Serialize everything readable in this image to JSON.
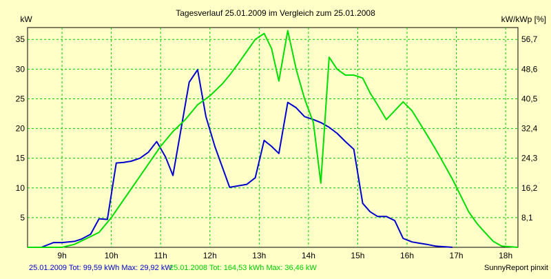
{
  "chart_data": {
    "type": "line",
    "title": "Tagesverlauf 25.01.2009 im Vergleich zum 25.01.2008",
    "ylabel_left": "kW",
    "ylabel_right": "kW/kWp [%]",
    "ylim": [
      0,
      37
    ],
    "yticks_left": [
      5,
      10,
      15,
      20,
      25,
      30,
      35
    ],
    "yticks_right": [
      "8,1",
      "16,2",
      "24,3",
      "32,4",
      "40,5",
      "48,6",
      "56,7"
    ],
    "xlim": [
      8.3,
      18.25
    ],
    "xticks": [
      {
        "value": 9,
        "label": "9h"
      },
      {
        "value": 10,
        "label": "10h"
      },
      {
        "value": 11,
        "label": "11h"
      },
      {
        "value": 12,
        "label": "12h"
      },
      {
        "value": 13,
        "label": "13h"
      },
      {
        "value": 14,
        "label": "14h"
      },
      {
        "value": 15,
        "label": "15h"
      },
      {
        "value": 16,
        "label": "16h"
      },
      {
        "value": 17,
        "label": "17h"
      },
      {
        "value": 18,
        "label": "18h"
      }
    ],
    "grid": true,
    "series": [
      {
        "name": "25.01.2009",
        "color": "#0000cc",
        "x": [
          8.3,
          8.58,
          8.83,
          9.0,
          9.25,
          9.4,
          9.58,
          9.75,
          9.92,
          10.1,
          10.25,
          10.4,
          10.58,
          10.75,
          10.92,
          11.1,
          11.25,
          11.58,
          11.75,
          11.92,
          12.1,
          12.4,
          12.75,
          12.92,
          13.1,
          13.25,
          13.4,
          13.58,
          13.75,
          13.92,
          14.1,
          14.25,
          14.42,
          14.58,
          14.75,
          14.92,
          15.1,
          15.25,
          15.4,
          15.58,
          15.75,
          15.92,
          16.1,
          16.25,
          16.4,
          16.58,
          16.75,
          16.92
        ],
        "values": [
          0,
          0,
          0.8,
          0.8,
          1.0,
          1.4,
          2.2,
          4.8,
          4.7,
          14.2,
          14.3,
          14.5,
          15.0,
          16.0,
          17.8,
          15.2,
          12.1,
          27.8,
          29.9,
          22.0,
          17.0,
          10.1,
          10.6,
          11.7,
          18.0,
          17.0,
          15.8,
          24.4,
          23.5,
          22.0,
          21.5,
          21.0,
          20.2,
          19.2,
          17.8,
          16.5,
          7.4,
          6.0,
          5.2,
          5.2,
          4.5,
          1.5,
          0.9,
          0.7,
          0.5,
          0.2,
          0.1,
          0
        ]
      },
      {
        "name": "25.01.2008",
        "color": "#00dd00",
        "x": [
          8.3,
          9.0,
          9.25,
          9.5,
          9.75,
          10.0,
          10.25,
          10.5,
          10.75,
          11.0,
          11.25,
          11.5,
          11.75,
          12.0,
          12.25,
          12.4,
          12.58,
          12.75,
          12.92,
          13.1,
          13.25,
          13.4,
          13.58,
          13.75,
          13.92,
          14.1,
          14.25,
          14.42,
          14.58,
          14.75,
          14.92,
          15.1,
          15.25,
          15.4,
          15.58,
          15.75,
          15.92,
          16.1,
          16.25,
          16.4,
          16.58,
          16.75,
          16.92,
          17.1,
          17.25,
          17.42,
          17.58,
          17.75,
          17.92,
          18.25
        ],
        "values": [
          0,
          0,
          0.5,
          1.5,
          2.5,
          5.0,
          8.0,
          11.0,
          14.0,
          17.0,
          19.5,
          21.5,
          24.0,
          25.5,
          27.5,
          29.0,
          31.0,
          33.0,
          35.0,
          36.0,
          33.5,
          28.0,
          36.5,
          30.0,
          25.0,
          21.0,
          10.8,
          32.0,
          30.0,
          29.0,
          29.0,
          28.5,
          26.0,
          24.0,
          21.5,
          23.0,
          24.5,
          23.0,
          21.0,
          19.0,
          16.5,
          14.0,
          11.5,
          8.5,
          6.0,
          4.0,
          2.5,
          1.0,
          0.2,
          0
        ]
      }
    ],
    "footer": {
      "series1_text": "25.01.2009 Tot: 99,59 kWh Max: 29,92 kW",
      "series2_text": "25.01.2008 Tot: 164,53 kWh Max: 36,46 kW",
      "credit": "SunnyReport pinxit"
    }
  }
}
